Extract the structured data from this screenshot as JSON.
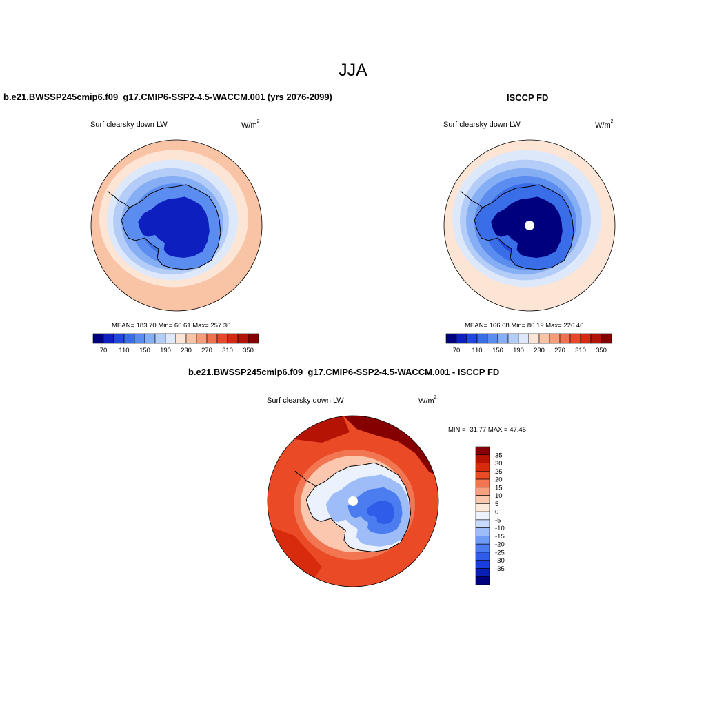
{
  "page": {
    "title": "JJA"
  },
  "palettes": {
    "abs": [
      "#00007f",
      "#0d1fbf",
      "#2246e0",
      "#3a6de8",
      "#5b8cf0",
      "#86aef5",
      "#b4cdf8",
      "#dde8fb",
      "#fde5d6",
      "#f9c3a6",
      "#f59d7a",
      "#ef7150",
      "#e8472a",
      "#d32a12",
      "#b01505",
      "#850000"
    ],
    "diff": [
      "#00007f",
      "#0a1fb4",
      "#1a3de0",
      "#2f5ce8",
      "#4c7df0",
      "#6f9bf4",
      "#9dbcf8",
      "#c8dafb",
      "#ebf1fd",
      "#fde8dc",
      "#fbc7ae",
      "#f7a07f",
      "#f27651",
      "#ea4a26",
      "#d82a0d",
      "#b51405",
      "#850000"
    ]
  },
  "panels": [
    {
      "title": "b.e21.BWSSP245cmip6.f09_g17.CMIP6-SSP2-4.5-WACCM.001 (yrs 2076-2099)",
      "variable": "Surf clearsky down LW",
      "units": "W/m",
      "units_exp": "2",
      "stats": "MEAN= 183.70  Min=  66.61  Max= 257.36",
      "colorbar_labels": [
        "70",
        "110",
        "150",
        "190",
        "230",
        "270",
        "310",
        "350"
      ],
      "field": {
        "ring_levels": [
          9,
          8,
          7,
          6,
          5,
          4,
          3,
          2
        ],
        "pole_gap": false
      }
    },
    {
      "title": "ISCCP FD",
      "variable": "Surf clearsky down LW",
      "units": "W/m",
      "units_exp": "2",
      "stats": "MEAN= 166.68  Min=  80.19  Max= 226.46",
      "colorbar_labels": [
        "70",
        "110",
        "150",
        "190",
        "230",
        "270",
        "310",
        "350"
      ],
      "field": {
        "ring_levels": [
          8,
          7,
          6,
          5,
          4,
          3,
          2,
          1
        ],
        "pole_gap": true
      }
    },
    {
      "title": "b.e21.BWSSP245cmip6.f09_g17.CMIP6-SSP2-4.5-WACCM.001 - ISCCP FD",
      "variable": "Surf clearsky down LW",
      "units": "W/m",
      "units_exp": "2",
      "minmax": "MIN = -31.77 MAX =  47.45",
      "colorbar_labels": [
        "35",
        "30",
        "25",
        "20",
        "15",
        "10",
        "5",
        "0",
        "-5",
        "-10",
        "-15",
        "-20",
        "-25",
        "-30",
        "-35"
      ],
      "field": {
        "pole_gap": true
      }
    }
  ]
}
